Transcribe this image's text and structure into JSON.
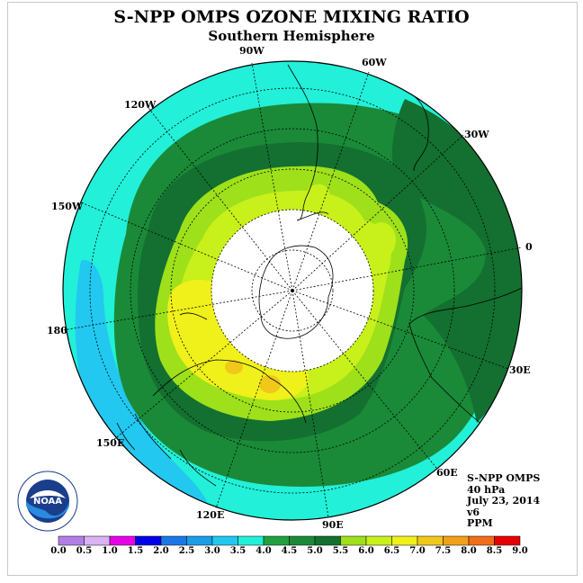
{
  "title": "S-NPP OMPS OZONE MIXING RATIO",
  "subtitle": "Southern Hemisphere",
  "longitude_labels": [
    "90W",
    "60W",
    "30W",
    "0",
    "30E",
    "60E",
    "90E",
    "120E",
    "150E",
    "180",
    "150W",
    "120W"
  ],
  "info": {
    "instrument": "S-NPP OMPS",
    "level": "40 hPa",
    "date": "July 23, 2014",
    "version": "v6",
    "units": "PPM"
  },
  "colorbar": {
    "labels": [
      "0.0",
      "0.5",
      "1.0",
      "1.5",
      "2.0",
      "2.5",
      "3.0",
      "3.5",
      "4.0",
      "4.5",
      "5.0",
      "5.5",
      "6.0",
      "6.5",
      "7.0",
      "7.5",
      "8.0",
      "8.5",
      "9.0"
    ],
    "colors": [
      "#b27fe6",
      "#d9b3f2",
      "#e600e6",
      "#0000e6",
      "#1a78e6",
      "#1a9ee6",
      "#22c8f0",
      "#22f0d8",
      "#22a040",
      "#1a8a38",
      "#137030",
      "#9ee01a",
      "#c8f01a",
      "#f0f01a",
      "#f0c81a",
      "#f0a01a",
      "#f06e1a",
      "#e60000",
      "#8a5a3a"
    ]
  },
  "logo_text": "NOAA"
}
